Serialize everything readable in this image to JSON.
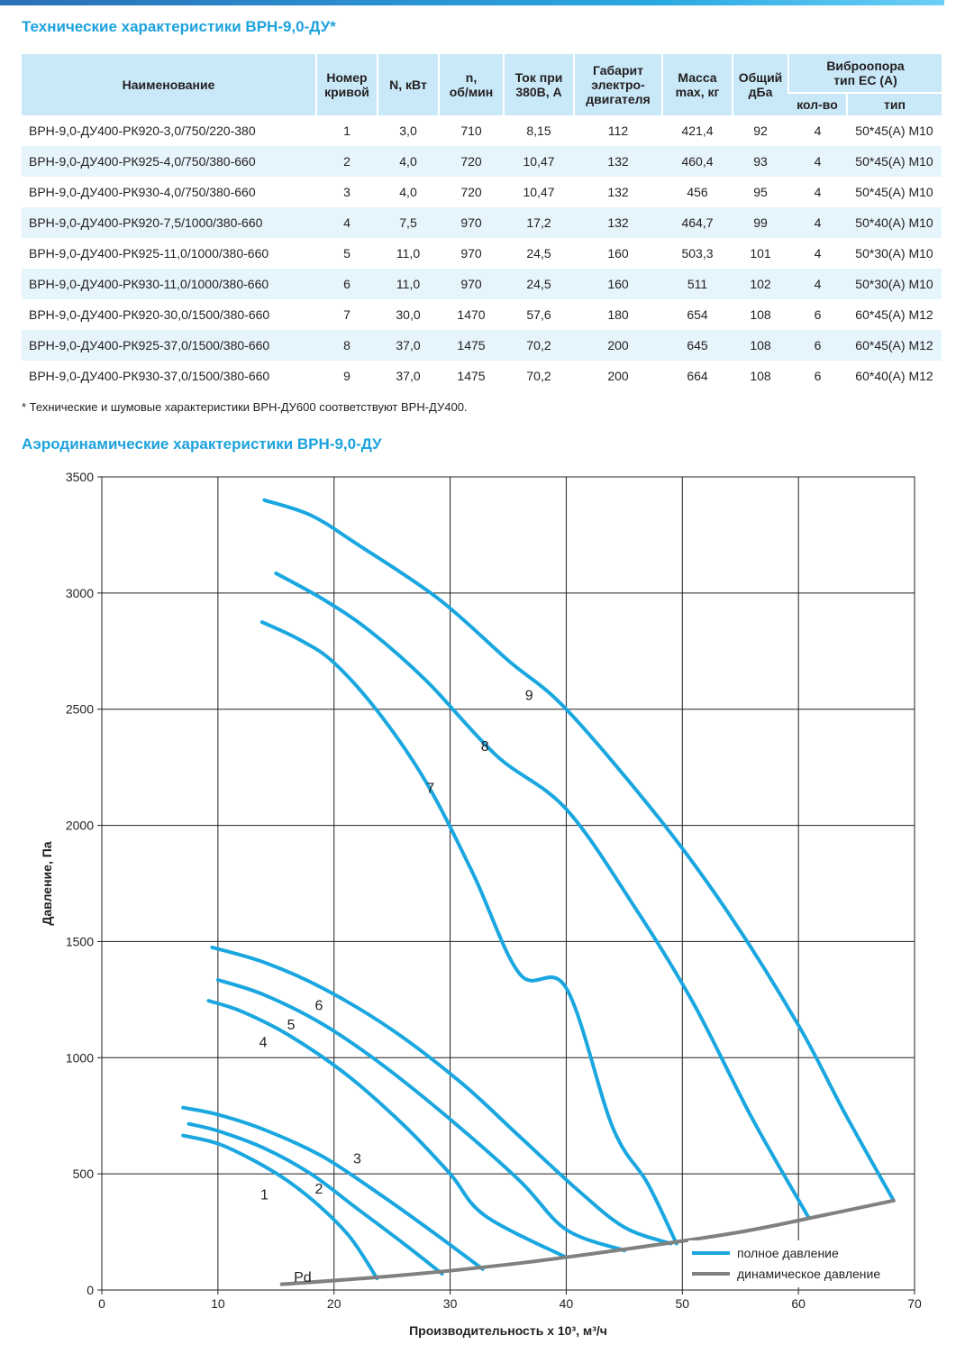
{
  "title_spec": "Технические характеристики ВРН-9,0-ДУ*",
  "table": {
    "headers": {
      "name": "Наименование",
      "curve_no": [
        "Номер",
        "кривой"
      ],
      "power": "N, кВт",
      "rpm": [
        "n,",
        "об/мин"
      ],
      "current": [
        "Ток при",
        "380В, А"
      ],
      "motor_size": [
        "Габарит",
        "электро-",
        "двигателя"
      ],
      "mass": [
        "Масса",
        "max, кг"
      ],
      "noise": [
        "Общий",
        "дБа"
      ],
      "vibro": [
        "Виброопора",
        "тип ЕС (А)"
      ],
      "vibro_count": "кол-во",
      "vibro_type": "тип"
    },
    "rows": [
      [
        "ВРН-9,0-ДУ400-РК920-3,0/750/220-380",
        "1",
        "3,0",
        "710",
        "8,15",
        "112",
        "421,4",
        "92",
        "4",
        "50*45(А) М10"
      ],
      [
        "ВРН-9,0-ДУ400-РК925-4,0/750/380-660",
        "2",
        "4,0",
        "720",
        "10,47",
        "132",
        "460,4",
        "93",
        "4",
        "50*45(А) М10"
      ],
      [
        "ВРН-9,0-ДУ400-РК930-4,0/750/380-660",
        "3",
        "4,0",
        "720",
        "10,47",
        "132",
        "456",
        "95",
        "4",
        "50*45(А) М10"
      ],
      [
        "ВРН-9,0-ДУ400-РК920-7,5/1000/380-660",
        "4",
        "7,5",
        "970",
        "17,2",
        "132",
        "464,7",
        "99",
        "4",
        "50*40(А) М10"
      ],
      [
        "ВРН-9,0-ДУ400-РК925-11,0/1000/380-660",
        "5",
        "11,0",
        "970",
        "24,5",
        "160",
        "503,3",
        "101",
        "4",
        "50*30(А) М10"
      ],
      [
        "ВРН-9,0-ДУ400-РК930-11,0/1000/380-660",
        "6",
        "11,0",
        "970",
        "24,5",
        "160",
        "511",
        "102",
        "4",
        "50*30(А) М10"
      ],
      [
        "ВРН-9,0-ДУ400-РК920-30,0/1500/380-660",
        "7",
        "30,0",
        "1470",
        "57,6",
        "180",
        "654",
        "108",
        "6",
        "60*45(А) М12"
      ],
      [
        "ВРН-9,0-ДУ400-РК925-37,0/1500/380-660",
        "8",
        "37,0",
        "1475",
        "70,2",
        "200",
        "645",
        "108",
        "6",
        "60*45(А) М12"
      ],
      [
        "ВРН-9,0-ДУ400-РК930-37,0/1500/380-660",
        "9",
        "37,0",
        "1475",
        "70,2",
        "200",
        "664",
        "108",
        "6",
        "60*40(А) М12"
      ]
    ]
  },
  "footnote": "* Технические и шумовые характеристики ВРН-ДУ600 соответствуют ВРН-ДУ400.",
  "title_chart": "Аэродинамические характеристики ВРН-9,0-ДУ",
  "colors": {
    "accent": "#1da3dd",
    "curve": "#1aa7e0",
    "dynamic": "#808080",
    "header_bg": "#c9e9f8",
    "row_alt": "#e6f4fb"
  },
  "chart_data": {
    "type": "line",
    "xlabel": "Производительность x 10³, м³/ч",
    "ylabel": "Давление, Па",
    "xlim": [
      0,
      70
    ],
    "ylim": [
      0,
      3500
    ],
    "xticks": [
      0,
      10,
      20,
      30,
      40,
      50,
      60,
      70
    ],
    "yticks": [
      0,
      500,
      1000,
      1500,
      2000,
      2500,
      3000,
      3500
    ],
    "grid": true,
    "legend_position": "bottom-right",
    "legend": [
      "полное давление",
      "динамическое давление"
    ],
    "series": [
      {
        "name": "1",
        "label_at": [
          14,
          410
        ],
        "points": [
          [
            7,
            665
          ],
          [
            10,
            630
          ],
          [
            13,
            560
          ],
          [
            16,
            470
          ],
          [
            19,
            350
          ],
          [
            21.5,
            220
          ],
          [
            23.7,
            50
          ]
        ]
      },
      {
        "name": "2",
        "label_at": [
          18.7,
          435
        ],
        "points": [
          [
            7.5,
            715
          ],
          [
            10,
            685
          ],
          [
            14,
            610
          ],
          [
            18,
            500
          ],
          [
            22,
            350
          ],
          [
            26,
            200
          ],
          [
            29.3,
            70
          ]
        ]
      },
      {
        "name": "3",
        "label_at": [
          22,
          565
        ],
        "points": [
          [
            7,
            785
          ],
          [
            10,
            755
          ],
          [
            14,
            690
          ],
          [
            19,
            575
          ],
          [
            24,
            410
          ],
          [
            28.5,
            250
          ],
          [
            32.8,
            90
          ]
        ]
      },
      {
        "name": "4",
        "label_at": [
          13.9,
          1065
        ],
        "points": [
          [
            9.2,
            1245
          ],
          [
            12,
            1200
          ],
          [
            16,
            1100
          ],
          [
            21,
            930
          ],
          [
            26,
            710
          ],
          [
            30,
            500
          ],
          [
            33,
            320
          ],
          [
            40,
            140
          ]
        ]
      },
      {
        "name": "5",
        "label_at": [
          16.3,
          1140
        ],
        "points": [
          [
            10,
            1335
          ],
          [
            14,
            1270
          ],
          [
            19,
            1145
          ],
          [
            24,
            975
          ],
          [
            30,
            735
          ],
          [
            36,
            470
          ],
          [
            40,
            260
          ],
          [
            45,
            170
          ]
        ]
      },
      {
        "name": "6",
        "label_at": [
          18.7,
          1225
        ],
        "points": [
          [
            9.5,
            1475
          ],
          [
            14,
            1410
          ],
          [
            19,
            1300
          ],
          [
            25,
            1120
          ],
          [
            31,
            890
          ],
          [
            36,
            660
          ],
          [
            41,
            430
          ],
          [
            45,
            270
          ],
          [
            49,
            200
          ]
        ]
      },
      {
        "name": "7",
        "label_at": [
          28.3,
          2160
        ],
        "points": [
          [
            13.8,
            2875
          ],
          [
            17,
            2800
          ],
          [
            20,
            2700
          ],
          [
            24,
            2475
          ],
          [
            28,
            2180
          ],
          [
            32,
            1790
          ],
          [
            36,
            1360
          ],
          [
            40,
            1300
          ],
          [
            44,
            700
          ],
          [
            47,
            460
          ],
          [
            49.5,
            200
          ]
        ]
      },
      {
        "name": "8",
        "label_at": [
          33,
          2340
        ],
        "points": [
          [
            15,
            3085
          ],
          [
            19,
            2975
          ],
          [
            23,
            2840
          ],
          [
            28,
            2620
          ],
          [
            34,
            2300
          ],
          [
            40,
            2070
          ],
          [
            46,
            1640
          ],
          [
            51,
            1230
          ],
          [
            56,
            740
          ],
          [
            60.9,
            310
          ]
        ]
      },
      {
        "name": "9",
        "label_at": [
          36.8,
          2560
        ],
        "points": [
          [
            14,
            3400
          ],
          [
            18,
            3335
          ],
          [
            22,
            3210
          ],
          [
            29,
            2975
          ],
          [
            35,
            2710
          ],
          [
            40,
            2500
          ],
          [
            48,
            2030
          ],
          [
            54,
            1620
          ],
          [
            60,
            1140
          ],
          [
            64,
            760
          ],
          [
            68.2,
            385
          ]
        ]
      },
      {
        "name": "Pd",
        "label_at": [
          17.3,
          55
        ],
        "points": [
          [
            15.5,
            25
          ],
          [
            25,
            60
          ],
          [
            35,
            110
          ],
          [
            45,
            175
          ],
          [
            55,
            250
          ],
          [
            62,
            320
          ],
          [
            68.2,
            385
          ]
        ]
      }
    ]
  }
}
